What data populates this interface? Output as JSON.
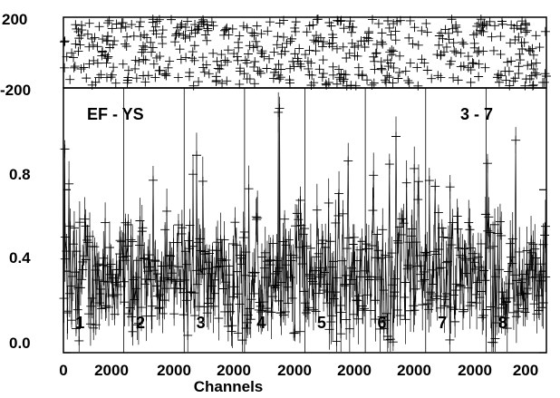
{
  "chart_data": [
    {
      "type": "scatter",
      "role": "residual-panel",
      "yticks": [
        "200",
        "-200"
      ],
      "ylim": [
        -200,
        200
      ],
      "grid": false
    },
    {
      "type": "scatter",
      "role": "main-panel",
      "title": "EF - YS",
      "title_right": "3 - 7",
      "xlabel": "Channels",
      "ylabel": "",
      "xticks": [
        "0",
        "2000",
        "2000",
        "2000",
        "2000",
        "2000",
        "2000",
        "2000",
        "200"
      ],
      "yticks": [
        "0.0",
        "0.4",
        "0.8"
      ],
      "ylim": [
        0,
        1.3
      ],
      "segments": [
        "1",
        "2",
        "3",
        "4",
        "5",
        "6",
        "7",
        "8"
      ],
      "segment_channels": 2500,
      "series": [
        {
          "points_per_segment": 75,
          "baseline": 0.34,
          "value_range": [
            0.05,
            1.22
          ],
          "notable_peaks": [
            {
              "segment": "1",
              "x": 60,
              "y": 1.0
            },
            {
              "segment": "4",
              "x": 1450,
              "y": 1.2
            },
            {
              "segment": "4",
              "x": 1400,
              "y": 1.18
            }
          ]
        }
      ]
    }
  ]
}
